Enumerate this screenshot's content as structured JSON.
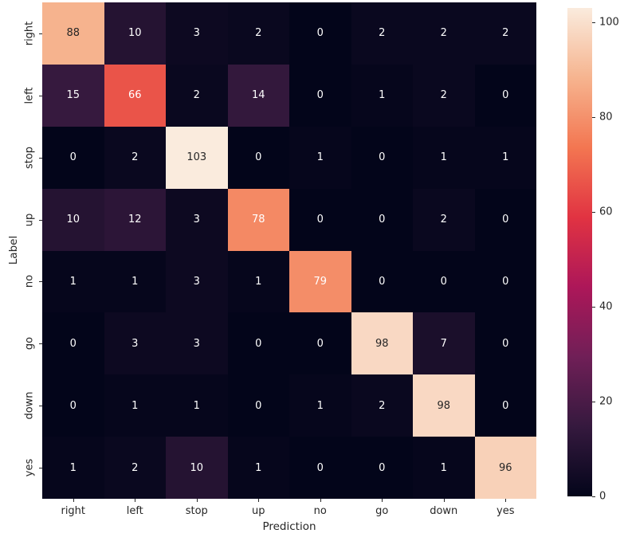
{
  "chart_data": {
    "type": "heatmap",
    "title": "",
    "xlabel": "Prediction",
    "ylabel": "Label",
    "x_categories": [
      "right",
      "left",
      "stop",
      "up",
      "no",
      "go",
      "down",
      "yes"
    ],
    "y_categories": [
      "right",
      "left",
      "stop",
      "up",
      "no",
      "go",
      "down",
      "yes"
    ],
    "matrix": [
      [
        88,
        10,
        3,
        2,
        0,
        2,
        2,
        2
      ],
      [
        15,
        66,
        2,
        14,
        0,
        1,
        2,
        0
      ],
      [
        0,
        2,
        103,
        0,
        1,
        0,
        1,
        1
      ],
      [
        10,
        12,
        3,
        78,
        0,
        0,
        2,
        0
      ],
      [
        1,
        1,
        3,
        1,
        79,
        0,
        0,
        0
      ],
      [
        0,
        3,
        3,
        0,
        0,
        98,
        7,
        0
      ],
      [
        0,
        1,
        1,
        0,
        1,
        2,
        98,
        0
      ],
      [
        1,
        2,
        10,
        1,
        0,
        0,
        1,
        96
      ]
    ],
    "vmin": 0,
    "vmax": 103,
    "annotated": true,
    "grid_lines": false,
    "colorbar": {
      "position": "right",
      "ticks": [
        0,
        20,
        40,
        60,
        80,
        100
      ]
    },
    "colormap": {
      "name": "rocket",
      "anchors": [
        {
          "t": 0.0,
          "color": "#03051A"
        },
        {
          "t": 0.143,
          "color": "#35193E"
        },
        {
          "t": 0.286,
          "color": "#701F57"
        },
        {
          "t": 0.429,
          "color": "#AD1759"
        },
        {
          "t": 0.571,
          "color": "#E13342"
        },
        {
          "t": 0.714,
          "color": "#F37651"
        },
        {
          "t": 0.857,
          "color": "#F6B48F"
        },
        {
          "t": 1.0,
          "color": "#FAEBDD"
        }
      ]
    },
    "annotation_text_colors": {
      "dark": "#262626",
      "light": "#ffffff",
      "luminance_threshold": 0.408
    },
    "background_color": "#ffffff"
  }
}
